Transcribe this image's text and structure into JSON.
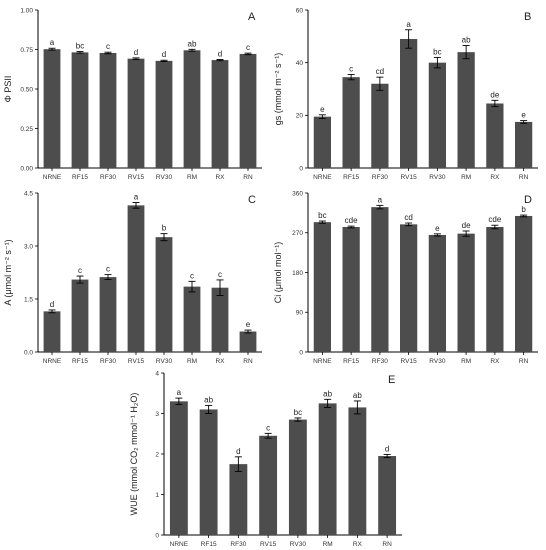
{
  "colors": {
    "bar": "#4d4d4d",
    "axis": "#000000",
    "error": "#000000",
    "background": "#ffffff"
  },
  "chart_data": [
    {
      "type": "bar",
      "panel": "A",
      "ylabel": "Φ PSII",
      "ylim": [
        0,
        1.0
      ],
      "yticks": [
        "0.00",
        "0.25",
        "0.50",
        "0.75",
        "1.00"
      ],
      "yticks_values": [
        0,
        0.25,
        0.5,
        0.75,
        1.0
      ],
      "categories": [
        "NRNE",
        "RF15",
        "RF30",
        "RV15",
        "RV30",
        "RM",
        "RX",
        "RN"
      ],
      "values": [
        0.752,
        0.732,
        0.728,
        0.692,
        0.678,
        0.745,
        0.683,
        0.722
      ],
      "errors": [
        0.006,
        0.005,
        0.005,
        0.005,
        0.004,
        0.006,
        0.004,
        0.005
      ],
      "labels": [
        "a",
        "bc",
        "c",
        "d",
        "d",
        "ab",
        "d",
        "c"
      ],
      "grid": false,
      "legend": "none"
    },
    {
      "type": "bar",
      "panel": "B",
      "ylabel": "gs (mmol m⁻² s⁻¹)",
      "ylim": [
        0,
        60
      ],
      "yticks": [
        "0",
        "20",
        "40",
        "60"
      ],
      "yticks_values": [
        0,
        20,
        40,
        60
      ],
      "categories": [
        "NRNE",
        "RF15",
        "RF30",
        "RV15",
        "RV30",
        "RM",
        "RX",
        "RN"
      ],
      "values": [
        19.5,
        34.5,
        32.0,
        49.0,
        40.0,
        44.0,
        24.5,
        17.5
      ],
      "errors": [
        0.7,
        1.0,
        2.5,
        3.5,
        2.0,
        2.5,
        1.2,
        0.5
      ],
      "labels": [
        "e",
        "c",
        "cd",
        "a",
        "bc",
        "ab",
        "de",
        "e"
      ],
      "grid": false,
      "legend": "none"
    },
    {
      "type": "bar",
      "panel": "C",
      "ylabel": "A (μmol m⁻² s⁻¹)",
      "ylim": [
        0,
        4.5
      ],
      "yticks": [
        "0.0",
        "1.5",
        "3.0",
        "4.5"
      ],
      "yticks_values": [
        0,
        1.5,
        3.0,
        4.5
      ],
      "categories": [
        "NRNE",
        "RF15",
        "RF30",
        "RV15",
        "RV30",
        "RM",
        "RX",
        "RN"
      ],
      "values": [
        1.15,
        2.05,
        2.12,
        4.15,
        3.25,
        1.85,
        1.82,
        0.58
      ],
      "errors": [
        0.04,
        0.1,
        0.07,
        0.08,
        0.1,
        0.15,
        0.22,
        0.04
      ],
      "labels": [
        "d",
        "c",
        "c",
        "a",
        "b",
        "c",
        "c",
        "e"
      ],
      "grid": false,
      "legend": "none"
    },
    {
      "type": "bar",
      "panel": "D",
      "ylabel": "Ci (μmol mol⁻¹)",
      "ylim": [
        0,
        360
      ],
      "yticks": [
        "0",
        "90",
        "180",
        "270",
        "360"
      ],
      "yticks_values": [
        0,
        90,
        180,
        270,
        360
      ],
      "categories": [
        "NRNE",
        "RF15",
        "RF30",
        "RV15",
        "RV30",
        "RM",
        "RX",
        "RN"
      ],
      "values": [
        294,
        283,
        328,
        289,
        265,
        268,
        283,
        308
      ],
      "errors": [
        2.5,
        2,
        4,
        3,
        2.5,
        6,
        4,
        2
      ],
      "labels": [
        "bc",
        "cde",
        "a",
        "cd",
        "e",
        "de",
        "cde",
        "b"
      ],
      "grid": false,
      "legend": "none"
    },
    {
      "type": "bar",
      "panel": "E",
      "ylabel": "WUE (mmol CO₂ mmol⁻¹ H₂O)",
      "ylim": [
        0,
        4
      ],
      "yticks": [
        "0",
        "1",
        "2",
        "3",
        "4"
      ],
      "yticks_values": [
        0,
        1,
        2,
        3,
        4
      ],
      "categories": [
        "NRNE",
        "RF15",
        "RF30",
        "RV15",
        "RV30",
        "RM",
        "RX",
        "RN"
      ],
      "values": [
        3.3,
        3.1,
        1.75,
        2.45,
        2.85,
        3.25,
        3.15,
        1.95
      ],
      "errors": [
        0.08,
        0.1,
        0.18,
        0.06,
        0.04,
        0.1,
        0.16,
        0.04
      ],
      "labels": [
        "a",
        "ab",
        "d",
        "c",
        "bc",
        "ab",
        "ab",
        "d"
      ],
      "grid": false,
      "legend": "none"
    }
  ]
}
